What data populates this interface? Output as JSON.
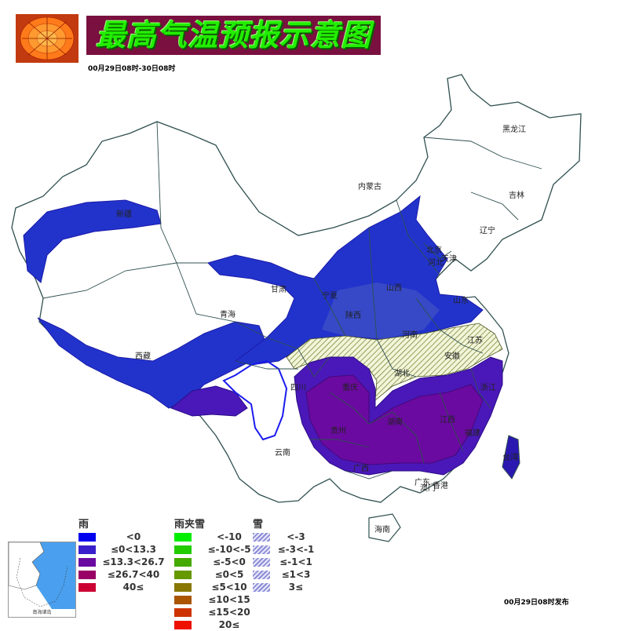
{
  "header": {
    "title": "最高气温预报示意图",
    "date_range": "00月29日08时-30日08时",
    "publish_time": "00月29日08时发布",
    "logo_icon": "chrysanthemum-flower-icon"
  },
  "map": {
    "provinces": [
      "黑龙江",
      "内蒙古",
      "吉林",
      "辽宁",
      "新疆",
      "北京",
      "河北",
      "天津",
      "甘肃",
      "宁夏",
      "山西",
      "山东",
      "青海",
      "陕西",
      "河南",
      "江苏",
      "西藏",
      "安徽",
      "湖北",
      "四川",
      "重庆",
      "浙江",
      "湖南",
      "江西",
      "贵州",
      "福建",
      "云南",
      "台湾",
      "广西",
      "广东",
      "澳门",
      "香港",
      "海南"
    ]
  },
  "legend": {
    "rain": {
      "title": "雨",
      "items": [
        {
          "label": "<0",
          "color": "#0000ee"
        },
        {
          "label": "≤0<13.3",
          "color": "#3a1fcc"
        },
        {
          "label": "≤13.3<26.7",
          "color": "#6a0aa0"
        },
        {
          "label": "≤26.7<40",
          "color": "#990066"
        },
        {
          "label": "40≤",
          "color": "#cc0033"
        }
      ]
    },
    "sleet": {
      "title": "雨夹雪",
      "items": [
        {
          "label": "<-10",
          "color": "#00ee00"
        },
        {
          "label": "≤-10<-5",
          "color": "#22cc00"
        },
        {
          "label": "≤-5<0",
          "color": "#44aa00"
        },
        {
          "label": "≤0<5",
          "color": "#669900"
        },
        {
          "label": "≤5<10",
          "color": "#887700"
        },
        {
          "label": "≤10<15",
          "color": "#aa5500"
        },
        {
          "label": "≤15<20",
          "color": "#cc3300"
        },
        {
          "label": "20≤",
          "color": "#ee1100"
        }
      ]
    },
    "snow": {
      "title": "雪",
      "items": [
        {
          "label": "<-3"
        },
        {
          "label": "≤-3<-1"
        },
        {
          "label": "≤-1<1"
        },
        {
          "label": "≤1<3"
        },
        {
          "label": "3≤"
        }
      ]
    }
  },
  "inset": {
    "label": "南海诸岛"
  }
}
